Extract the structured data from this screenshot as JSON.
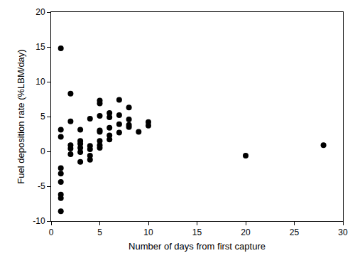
{
  "chart_data": {
    "type": "scatter",
    "x_label": "Number of days from first capture",
    "y_label": "Fuel deposition rate (%LBM/day)",
    "x": [
      1,
      1,
      1,
      1,
      1,
      1,
      1,
      1,
      1,
      2,
      2,
      2,
      2,
      2,
      3,
      3,
      3,
      3,
      3,
      3,
      4,
      4,
      4,
      4,
      4,
      5,
      5,
      5,
      5,
      5,
      5,
      5,
      5,
      6,
      6,
      6,
      6,
      6,
      7,
      7,
      7,
      7,
      8,
      8,
      8,
      8,
      9,
      10,
      10,
      20,
      28
    ],
    "values": [
      14.8,
      3.1,
      2.1,
      -2.4,
      -3.2,
      -4.4,
      -6.2,
      -6.7,
      -8.6,
      8.3,
      4.3,
      0.9,
      0.4,
      -0.4,
      3.1,
      1.5,
      1.1,
      0.5,
      -0.1,
      -1.5,
      4.7,
      0.8,
      0.3,
      -0.6,
      -1.2,
      7.3,
      6.9,
      5.1,
      3.0,
      2.8,
      1.5,
      0.9,
      0.5,
      5.5,
      4.9,
      3.4,
      2.3,
      1.7,
      7.4,
      5.2,
      3.9,
      2.7,
      6.3,
      4.6,
      3.8,
      3.5,
      2.8,
      4.2,
      3.7,
      -0.6,
      0.9
    ],
    "color": "#000000",
    "marker": "circle",
    "xlim": [
      0,
      30
    ],
    "xticks": [
      0,
      5,
      10,
      15,
      20,
      25,
      30
    ],
    "ylim": [
      -10,
      20
    ],
    "yticks": [
      -10,
      -5,
      0,
      5,
      10,
      15,
      20
    ],
    "grid": false
  }
}
